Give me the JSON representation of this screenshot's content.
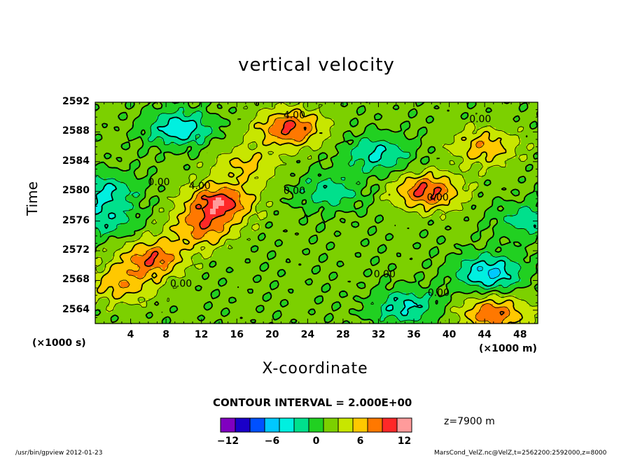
{
  "chart_data": {
    "type": "heatmap",
    "title": "vertical velocity",
    "xlabel": "X-coordinate",
    "ylabel": "Time",
    "x_unit_label": "(×1000 m)",
    "y_unit_label": "(×1000 s)",
    "x_ticks": [
      "4",
      "8",
      "12",
      "16",
      "20",
      "24",
      "28",
      "32",
      "36",
      "40",
      "44",
      "48"
    ],
    "y_ticks": [
      "2564",
      "2568",
      "2572",
      "2576",
      "2580",
      "2584",
      "2588",
      "2592"
    ],
    "xlim": [
      0,
      50
    ],
    "ylim": [
      2562.2,
      2592
    ],
    "contour_interval_text": "CONTOUR INTERVAL = 2.000E+00",
    "contour_labels": [
      {
        "text": "4.00",
        "x": 22.5,
        "y": 2590.3
      },
      {
        "text": "4.00",
        "x": 11.8,
        "y": 2580.8
      },
      {
        "text": "0.00",
        "x": 7.2,
        "y": 2581.3
      },
      {
        "text": "0.00",
        "x": 22.5,
        "y": 2580.1
      },
      {
        "text": "0.00",
        "x": 43.5,
        "y": 2589.8
      },
      {
        "text": "0.00",
        "x": 38.7,
        "y": 2579.2
      },
      {
        "text": "0.00",
        "x": 9.7,
        "y": 2567.6
      },
      {
        "text": "0.00",
        "x": 32.7,
        "y": 2568.9
      },
      {
        "text": "0.00",
        "x": 38.8,
        "y": 2566.4
      }
    ],
    "field_features": [
      {
        "sign": 1,
        "x": 14.0,
        "y": 2578.5,
        "amp": 9.0
      },
      {
        "sign": 1,
        "x": 12.0,
        "y": 2575.0,
        "amp": 6.0
      },
      {
        "sign": 1,
        "x": 22.0,
        "y": 2588.5,
        "amp": 8.0
      },
      {
        "sign": 1,
        "x": 17.0,
        "y": 2583.5,
        "amp": 4.0
      },
      {
        "sign": 1,
        "x": 6.5,
        "y": 2571.0,
        "amp": 7.0
      },
      {
        "sign": 1,
        "x": 3.0,
        "y": 2567.5,
        "amp": 5.0
      },
      {
        "sign": 1,
        "x": 37.5,
        "y": 2580.0,
        "amp": 8.0
      },
      {
        "sign": 1,
        "x": 44.0,
        "y": 2586.0,
        "amp": 5.0
      },
      {
        "sign": 1,
        "x": 45.0,
        "y": 2563.5,
        "amp": 7.0
      },
      {
        "sign": -1,
        "x": 9.5,
        "y": 2588.5,
        "amp": 6.0
      },
      {
        "sign": -1,
        "x": 1.0,
        "y": 2580.0,
        "amp": 5.0
      },
      {
        "sign": -1,
        "x": 1.0,
        "y": 2576.0,
        "amp": 4.0
      },
      {
        "sign": -1,
        "x": 32.0,
        "y": 2585.0,
        "amp": 5.0
      },
      {
        "sign": -1,
        "x": 26.5,
        "y": 2580.0,
        "amp": 4.0
      },
      {
        "sign": -1,
        "x": 44.5,
        "y": 2569.0,
        "amp": 7.0
      },
      {
        "sign": -1,
        "x": 35.0,
        "y": 2564.5,
        "amp": 5.0
      },
      {
        "sign": -1,
        "x": 49.0,
        "y": 2576.0,
        "amp": 4.0
      }
    ],
    "colorbar": {
      "levels": [
        -12,
        -10,
        -8,
        -6,
        -4,
        -2,
        0,
        2,
        4,
        6,
        8,
        10,
        12
      ],
      "tick_labels": [
        "-12",
        "-6",
        "0",
        "6",
        "12"
      ],
      "colors": [
        "#8000c0",
        "#1a00c8",
        "#0050ff",
        "#00c8ff",
        "#00f0e0",
        "#00e08c",
        "#21d021",
        "#7cd000",
        "#c8e600",
        "#ffc800",
        "#ff7800",
        "#ff2828",
        "#ff9b9b"
      ]
    },
    "z_info": "z=7900  m"
  },
  "footer": {
    "left": "/usr/bin/gpview   2012-01-23",
    "right": "MarsCond_VelZ.nc@VelZ,t=2562200:2592000,z=8000"
  }
}
